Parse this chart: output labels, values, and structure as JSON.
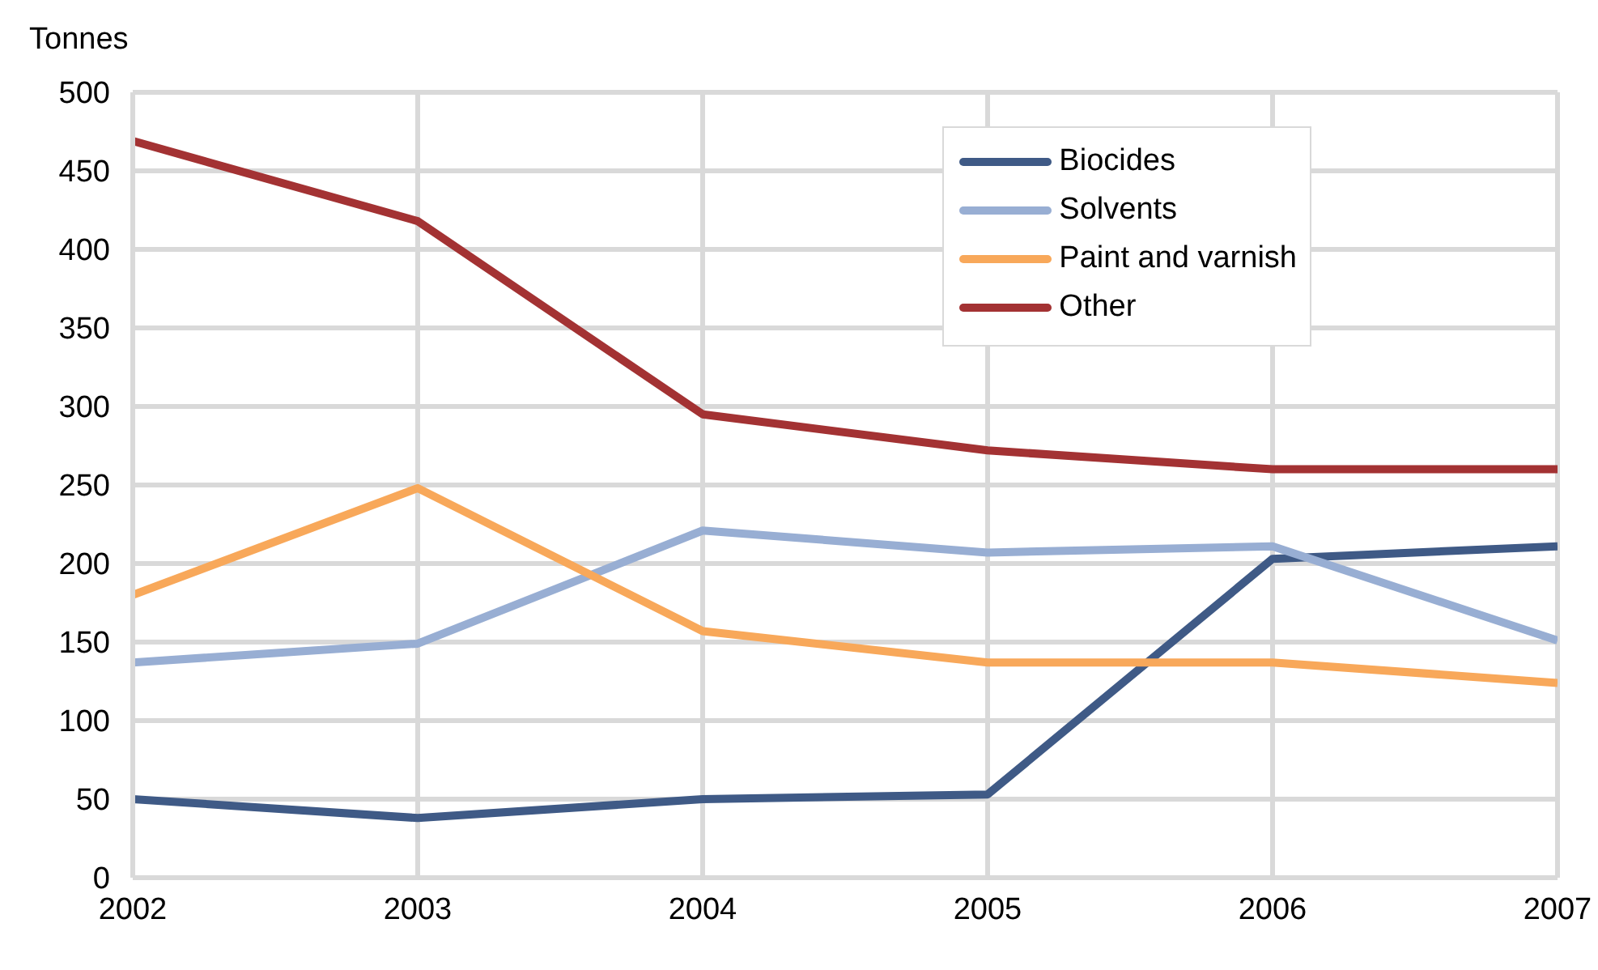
{
  "chart_data": {
    "type": "line",
    "ylabel": "Tonnes",
    "x": [
      2002,
      2003,
      2004,
      2005,
      2006,
      2007
    ],
    "xlim": [
      2002,
      2007
    ],
    "xticks": [
      2002,
      2003,
      2004,
      2005,
      2006,
      2007
    ],
    "ylim": [
      0,
      500
    ],
    "yticks": [
      0,
      50,
      100,
      150,
      200,
      250,
      300,
      350,
      400,
      450,
      500
    ],
    "grid": true,
    "legend": "top right",
    "marker": "none",
    "line_style": "solid",
    "series": [
      {
        "name": "Biocides",
        "color": "#3f5a86",
        "values": [
          50,
          38,
          50,
          53,
          203,
          211
        ]
      },
      {
        "name": "Solvents",
        "color": "#98aed3",
        "values": [
          137,
          149,
          221,
          207,
          211,
          151
        ]
      },
      {
        "name": "Paint and varnish",
        "color": "#f8a85a",
        "values": [
          180,
          248,
          157,
          137,
          137,
          124
        ]
      },
      {
        "name": "Other",
        "color": "#a33233",
        "values": [
          469,
          418,
          295,
          272,
          260,
          260
        ]
      }
    ]
  }
}
